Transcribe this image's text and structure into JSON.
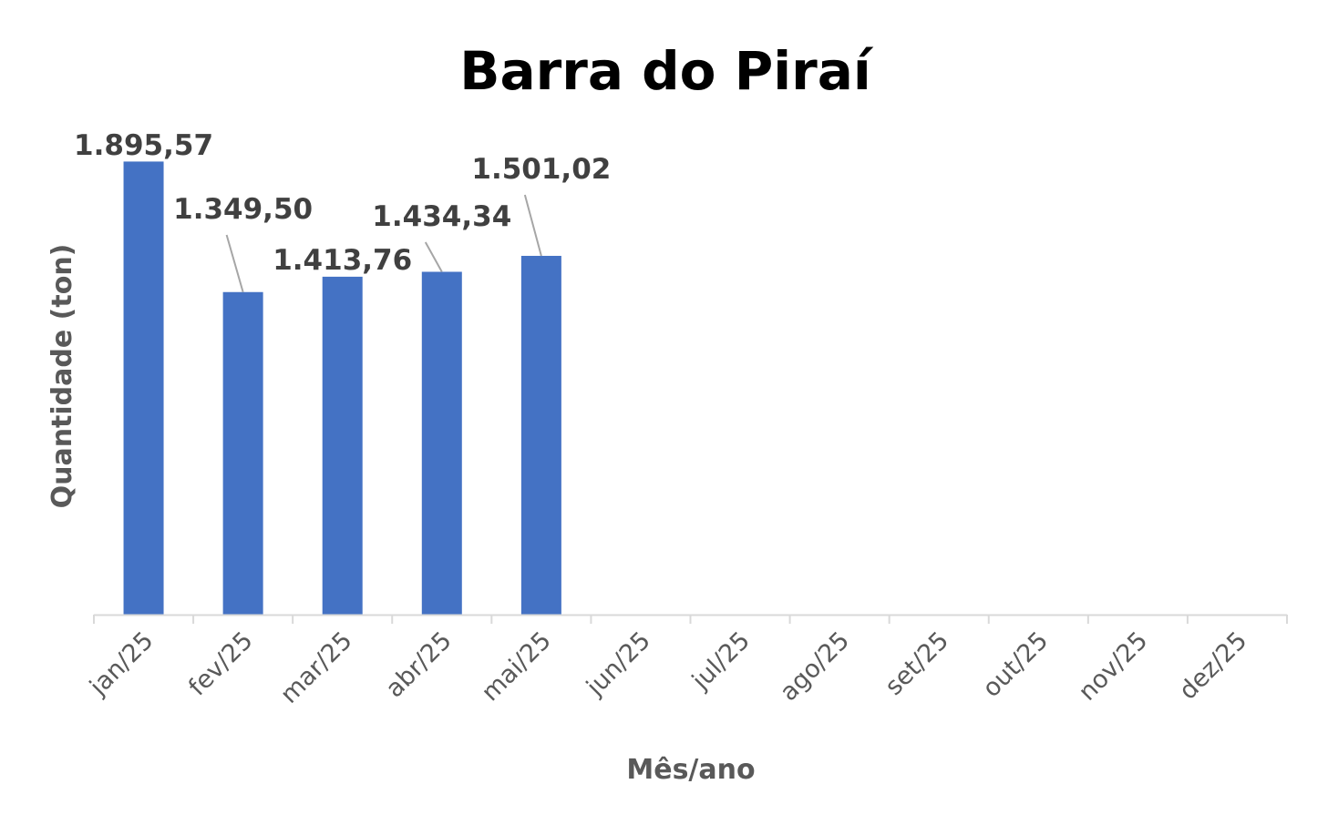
{
  "chart_data": {
    "type": "bar",
    "title": "Barra do Piraí",
    "xlabel": "Mês/ano",
    "ylabel": "Quantidade (ton)",
    "categories": [
      "jan/25",
      "fev/25",
      "mar/25",
      "abr/25",
      "mai/25",
      "jun/25",
      "jul/25",
      "ago/25",
      "set/25",
      "out/25",
      "nov/25",
      "dez/25"
    ],
    "values": [
      1895.57,
      1349.5,
      1413.76,
      1434.34,
      1501.02,
      null,
      null,
      null,
      null,
      null,
      null,
      null
    ],
    "data_labels": [
      "1.895,57",
      "1.349,50",
      "1.413,76",
      "1.434,34",
      "1.501,02",
      null,
      null,
      null,
      null,
      null,
      null,
      null
    ],
    "ylim": [
      0,
      2000
    ],
    "grid": false,
    "legend": "none",
    "bar_color": "#4472C4",
    "axis_color": "#D9D9D9",
    "leader_line_color": "#A6A6A6"
  }
}
